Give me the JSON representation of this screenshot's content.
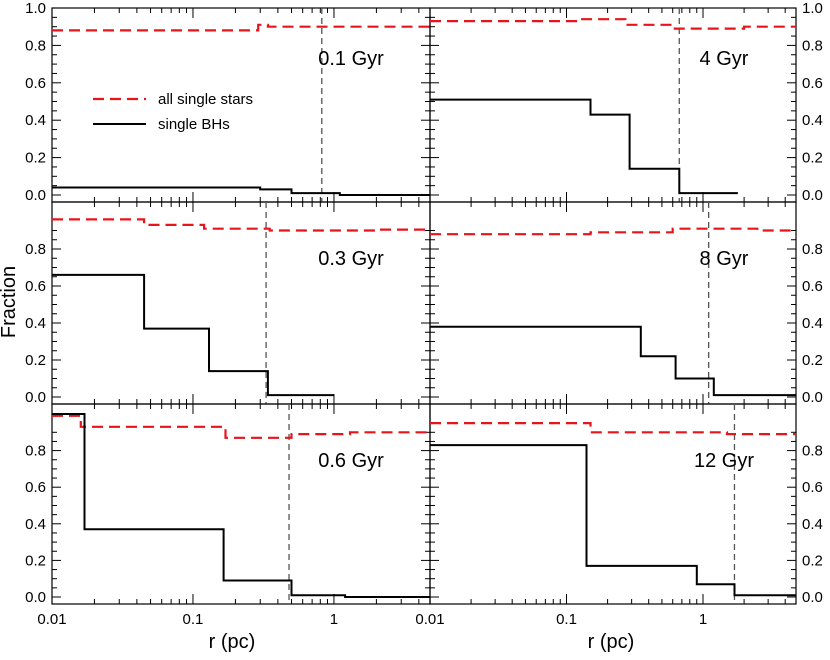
{
  "chart_data": {
    "type": "line",
    "ylabel": "Fraction",
    "xlabel": "r (pc)",
    "xscale": "log",
    "xlim": [
      0.01,
      4.8
    ],
    "ylim": [
      0.0,
      1.0
    ],
    "x_tick_labels": [
      "0.01",
      "0.1",
      "1"
    ],
    "x_tick_values": [
      0.01,
      0.1,
      1
    ],
    "y_tick_labels_top": [
      "0.0",
      "0.2",
      "0.4",
      "0.6",
      "0.8",
      "1.0"
    ],
    "y_tick_labels": [
      "0.0",
      "0.2",
      "0.4",
      "0.6",
      "0.8"
    ],
    "y_tick_values_top": [
      0,
      0.2,
      0.4,
      0.6,
      0.8,
      1.0
    ],
    "y_tick_values": [
      0,
      0.2,
      0.4,
      0.6,
      0.8
    ],
    "legend": [
      {
        "name": "all single stars",
        "color": "#e8131b",
        "style": "dashed"
      },
      {
        "name": "single BHs",
        "color": "#000000",
        "style": "solid"
      }
    ],
    "panels": [
      {
        "label": "0.1 Gyr",
        "column": "left",
        "row": 0,
        "vline": 0.82,
        "series": [
          {
            "name": "all single stars",
            "edges": [
              0.01,
              0.29,
              0.34,
              4.8
            ],
            "values": [
              0.88,
              0.91,
              0.9
            ]
          },
          {
            "name": "single BHs",
            "edges": [
              0.01,
              0.3,
              0.5,
              1.1,
              4.8
            ],
            "values": [
              0.04,
              0.03,
              0.01,
              0.0
            ]
          }
        ]
      },
      {
        "label": "4 Gyr",
        "column": "right",
        "row": 0,
        "vline": 0.67,
        "series": [
          {
            "name": "all single stars",
            "edges": [
              0.01,
              0.12,
              0.27,
              0.6,
              2.0,
              4.8
            ],
            "values": [
              0.93,
              0.94,
              0.91,
              0.89,
              0.9
            ]
          },
          {
            "name": "single BHs",
            "edges": [
              0.01,
              0.15,
              0.29,
              0.67,
              1.8
            ],
            "values": [
              0.51,
              0.43,
              0.14,
              0.01
            ]
          }
        ]
      },
      {
        "label": "0.3 Gyr",
        "column": "left",
        "row": 1,
        "vline": 0.33,
        "series": [
          {
            "name": "all single stars",
            "edges": [
              0.01,
              0.045,
              0.12,
              0.35,
              2.0,
              4.8
            ],
            "values": [
              0.96,
              0.93,
              0.91,
              0.9,
              0.905
            ]
          },
          {
            "name": "single BHs",
            "edges": [
              0.01,
              0.045,
              0.13,
              0.34,
              1.0
            ],
            "values": [
              0.66,
              0.37,
              0.14,
              0.01
            ]
          }
        ]
      },
      {
        "label": "8 Gyr",
        "column": "right",
        "row": 1,
        "vline": 1.1,
        "series": [
          {
            "name": "all single stars",
            "edges": [
              0.01,
              0.15,
              0.6,
              2.5,
              4.8
            ],
            "values": [
              0.88,
              0.89,
              0.91,
              0.9
            ]
          },
          {
            "name": "single BHs",
            "edges": [
              0.01,
              0.35,
              0.63,
              1.2,
              4.8
            ],
            "values": [
              0.38,
              0.22,
              0.1,
              0.01
            ]
          }
        ]
      },
      {
        "label": "0.6 Gyr",
        "column": "left",
        "row": 2,
        "vline": 0.48,
        "series": [
          {
            "name": "all single stars",
            "edges": [
              0.01,
              0.016,
              0.17,
              0.5,
              1.3,
              4.8
            ],
            "values": [
              0.99,
              0.93,
              0.87,
              0.89,
              0.9
            ]
          },
          {
            "name": "single BHs",
            "edges": [
              0.01,
              0.017,
              0.165,
              0.5,
              1.2,
              4.8
            ],
            "values": [
              1.0,
              0.37,
              0.09,
              0.01,
              0.0
            ]
          }
        ]
      },
      {
        "label": "12 Gyr",
        "column": "right",
        "row": 2,
        "vline": 1.7,
        "series": [
          {
            "name": "all single stars",
            "edges": [
              0.01,
              0.15,
              1.5,
              4.8
            ],
            "values": [
              0.95,
              0.9,
              0.89
            ]
          },
          {
            "name": "single BHs",
            "edges": [
              0.01,
              0.14,
              0.9,
              1.7,
              4.8
            ],
            "values": [
              0.83,
              0.17,
              0.07,
              0.01
            ]
          }
        ]
      }
    ]
  }
}
